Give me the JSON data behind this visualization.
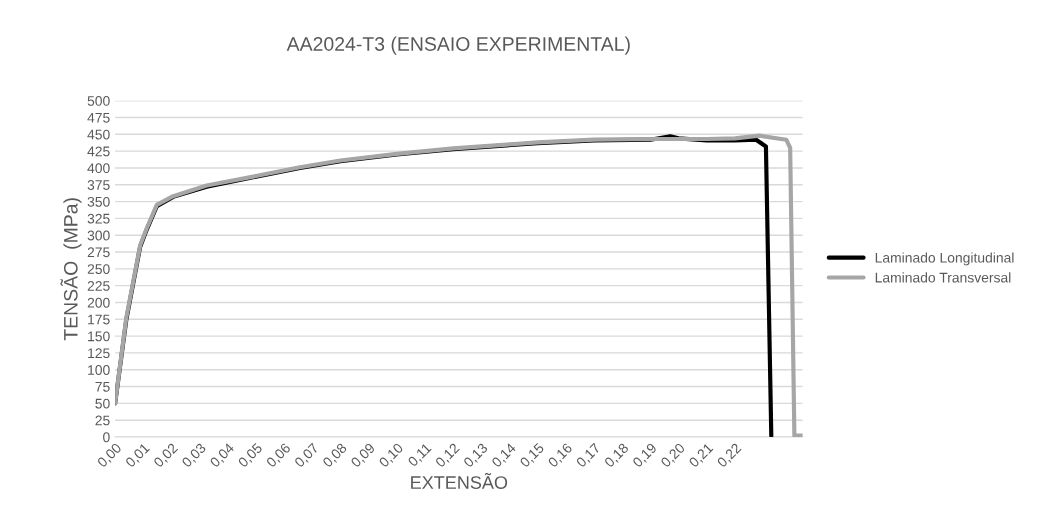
{
  "chart_data": {
    "type": "line",
    "title": "AA2024-T3 (ENSAIO EXPERIMENTAL)",
    "xlabel": "EXTENSÃO",
    "ylabel": "TENSÃO  (MPa)",
    "series": [
      {
        "name": "Laminado Longitudinal",
        "color": "#000000",
        "x": [
          0,
          0.004,
          0.0089,
          0.0112,
          0.0148,
          0.0206,
          0.0325,
          0.05,
          0.0656,
          0.08,
          0.1,
          0.12,
          0.15,
          0.17,
          0.19,
          0.197,
          0.2,
          0.21,
          0.22,
          0.2275,
          0.231,
          0.2329
        ],
        "values": [
          50,
          175,
          283,
          308,
          343,
          357,
          372,
          387,
          400,
          410,
          420,
          428,
          437,
          441,
          442,
          447,
          444,
          441,
          441,
          442,
          432,
          2
        ]
      },
      {
        "name": "Laminado Transversal",
        "color": "#a6a6a6",
        "x": [
          0,
          0.004,
          0.0089,
          0.0112,
          0.0148,
          0.0206,
          0.0325,
          0.05,
          0.0656,
          0.08,
          0.1,
          0.12,
          0.15,
          0.17,
          0.19,
          0.2,
          0.21,
          0.22,
          0.2287,
          0.2382,
          0.2396,
          0.2411,
          0.244
        ],
        "values": [
          50,
          178,
          285,
          310,
          345,
          358,
          374,
          388,
          401,
          411,
          421,
          429,
          438,
          442,
          443,
          443,
          443,
          444,
          448,
          442,
          430,
          2,
          2
        ]
      }
    ],
    "xlim": [
      0,
      0.244
    ],
    "ylim": [
      0,
      500
    ],
    "xticks": [
      {
        "value": 0,
        "label": "0,00"
      },
      {
        "value": 0.01,
        "label": "0,01"
      },
      {
        "value": 0.02,
        "label": "0,02"
      },
      {
        "value": 0.03,
        "label": "0,03"
      },
      {
        "value": 0.04,
        "label": "0,04"
      },
      {
        "value": 0.05,
        "label": "0,05"
      },
      {
        "value": 0.06,
        "label": "0,06"
      },
      {
        "value": 0.07,
        "label": "0,07"
      },
      {
        "value": 0.08,
        "label": "0,08"
      },
      {
        "value": 0.09,
        "label": "0,09"
      },
      {
        "value": 0.1,
        "label": "0,10"
      },
      {
        "value": 0.11,
        "label": "0,11"
      },
      {
        "value": 0.12,
        "label": "0,12"
      },
      {
        "value": 0.13,
        "label": "0,13"
      },
      {
        "value": 0.14,
        "label": "0,14"
      },
      {
        "value": 0.15,
        "label": "0,15"
      },
      {
        "value": 0.16,
        "label": "0,16"
      },
      {
        "value": 0.17,
        "label": "0,17"
      },
      {
        "value": 0.18,
        "label": "0,18"
      },
      {
        "value": 0.19,
        "label": "0,19"
      },
      {
        "value": 0.2,
        "label": "0,20"
      },
      {
        "value": 0.21,
        "label": "0,21"
      },
      {
        "value": 0.22,
        "label": "0,22"
      }
    ],
    "yticks": [
      0,
      25,
      50,
      75,
      100,
      125,
      150,
      175,
      200,
      225,
      250,
      275,
      300,
      325,
      350,
      375,
      400,
      425,
      450,
      475,
      500
    ],
    "grid": "y",
    "legend": "right",
    "marker": "none",
    "line_style": "solid"
  }
}
